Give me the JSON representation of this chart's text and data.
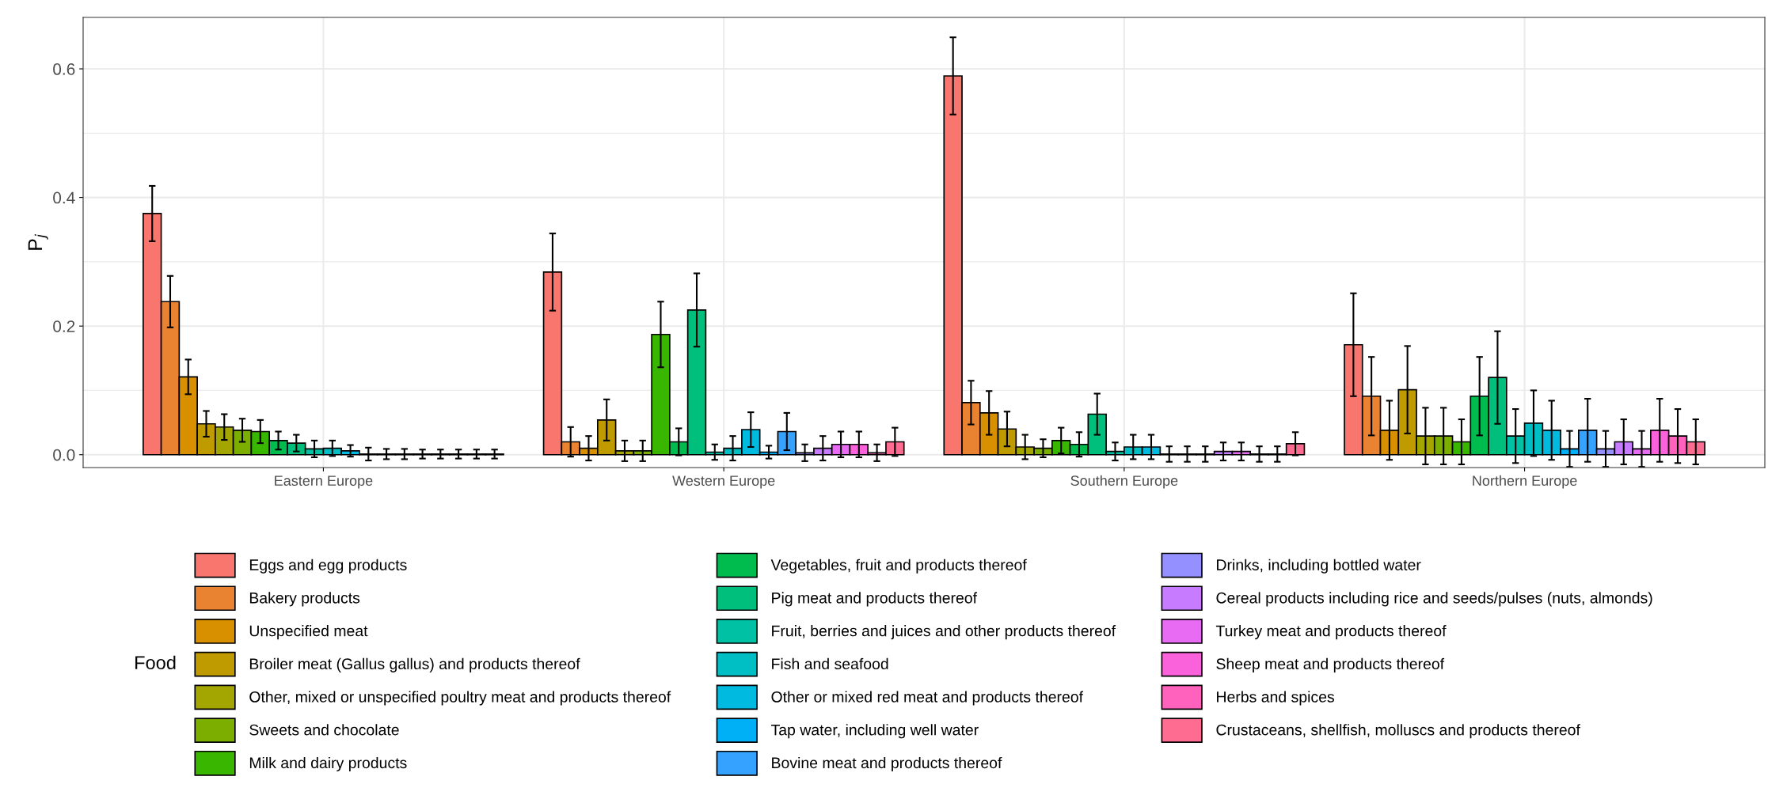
{
  "chart_data": {
    "type": "bar",
    "ylabel": "P$_{j}$",
    "legend_title": "Food",
    "legend": "bottom",
    "grid": true,
    "categories": [
      "Eastern Europe",
      "Western Europe",
      "Southern Europe",
      "Northern Europe"
    ],
    "ylim": [
      -0.02,
      0.68
    ],
    "yticks": [
      "0.0",
      0.2,
      0.4,
      0.6
    ],
    "series": [
      {
        "name": "Eggs and egg products",
        "color": "#F8766D",
        "values": [
          0.375,
          0.284,
          0.589,
          0.171
        ],
        "errors": [
          0.043,
          0.06,
          0.06,
          0.08
        ]
      },
      {
        "name": "Bakery products",
        "color": "#EA8331",
        "values": [
          0.238,
          0.02,
          0.081,
          0.091
        ],
        "errors": [
          0.04,
          0.023,
          0.034,
          0.061
        ]
      },
      {
        "name": "Unspecified meat",
        "color": "#D89000",
        "values": [
          0.121,
          0.01,
          0.065,
          0.038
        ],
        "errors": [
          0.027,
          0.019,
          0.034,
          0.046
        ]
      },
      {
        "name": "Broiler meat (Gallus gallus) and products thereof",
        "color": "#C09B00",
        "values": [
          0.048,
          0.054,
          0.04,
          0.101
        ],
        "errors": [
          0.02,
          0.032,
          0.027,
          0.068
        ]
      },
      {
        "name": "Other, mixed or unspecified poultry meat and products thereof",
        "color": "#A3A500",
        "values": [
          0.043,
          0.006,
          0.012,
          0.029
        ],
        "errors": [
          0.02,
          0.016,
          0.019,
          0.044
        ]
      },
      {
        "name": "Sweets and chocolate",
        "color": "#7CAE00",
        "values": [
          0.038,
          0.006,
          0.01,
          0.029
        ],
        "errors": [
          0.018,
          0.016,
          0.014,
          0.044
        ]
      },
      {
        "name": "Milk and dairy products",
        "color": "#39B600",
        "values": [
          0.036,
          0.187,
          0.022,
          0.02
        ],
        "errors": [
          0.018,
          0.051,
          0.02,
          0.035
        ]
      },
      {
        "name": "Vegetables, fruit and products thereof",
        "color": "#00BB4E",
        "values": [
          0.022,
          0.02,
          0.016,
          0.091
        ],
        "errors": [
          0.014,
          0.021,
          0.019,
          0.061
        ]
      },
      {
        "name": "Pig meat and products thereof",
        "color": "#00BF7D",
        "values": [
          0.018,
          0.225,
          0.063,
          0.12
        ],
        "errors": [
          0.013,
          0.057,
          0.032,
          0.072
        ]
      },
      {
        "name": "Fruit, berries and juices and other products thereof",
        "color": "#00C1A3",
        "values": [
          0.009,
          0.004,
          0.005,
          0.029
        ],
        "errors": [
          0.013,
          0.012,
          0.014,
          0.042
        ]
      },
      {
        "name": "Fish and seafood",
        "color": "#00BFC4",
        "values": [
          0.01,
          0.01,
          0.012,
          0.049
        ],
        "errors": [
          0.012,
          0.019,
          0.019,
          0.051
        ]
      },
      {
        "name": "Other or mixed red meat and products thereof",
        "color": "#00BAE0",
        "values": [
          0.006,
          0.039,
          0.012,
          0.038
        ],
        "errors": [
          0.009,
          0.027,
          0.019,
          0.046
        ]
      },
      {
        "name": "Tap water, including well water",
        "color": "#00B0F6",
        "values": [
          0.001,
          0.004,
          0.001,
          0.009
        ],
        "errors": [
          0.01,
          0.01,
          0.012,
          0.028
        ]
      },
      {
        "name": "Bovine meat and products thereof",
        "color": "#35A2FF",
        "values": [
          0.001,
          0.036,
          0.001,
          0.038
        ],
        "errors": [
          0.008,
          0.029,
          0.012,
          0.049
        ]
      },
      {
        "name": "Drinks, including bottled water",
        "color": "#9590FF",
        "values": [
          0.001,
          0.003,
          0.001,
          0.009
        ],
        "errors": [
          0.008,
          0.013,
          0.012,
          0.028
        ]
      },
      {
        "name": "Cereal products including rice and seeds/pulses (nuts, almonds)",
        "color": "#C77CFF",
        "values": [
          0.001,
          0.01,
          0.005,
          0.02
        ],
        "errors": [
          0.007,
          0.019,
          0.014,
          0.035
        ]
      },
      {
        "name": "Turkey meat and products thereof",
        "color": "#E76BF3",
        "values": [
          0.001,
          0.016,
          0.005,
          0.009
        ],
        "errors": [
          0.007,
          0.02,
          0.014,
          0.028
        ]
      },
      {
        "name": "Sheep meat and products thereof",
        "color": "#FA62DB",
        "values": [
          0.001,
          0.016,
          0.001,
          0.038
        ],
        "errors": [
          0.007,
          0.02,
          0.012,
          0.049
        ]
      },
      {
        "name": "Herbs and spices",
        "color": "#FF62BC",
        "values": [
          0.001,
          0.003,
          0.001,
          0.029
        ],
        "errors": [
          0.007,
          0.013,
          0.012,
          0.042
        ]
      },
      {
        "name": "Crustaceans, shellfish, molluscs and products thereof",
        "color": "#FF6C91",
        "values": [
          0.001,
          0.02,
          0.017,
          0.02
        ],
        "errors": [
          0.007,
          0.022,
          0.018,
          0.035
        ]
      }
    ]
  }
}
